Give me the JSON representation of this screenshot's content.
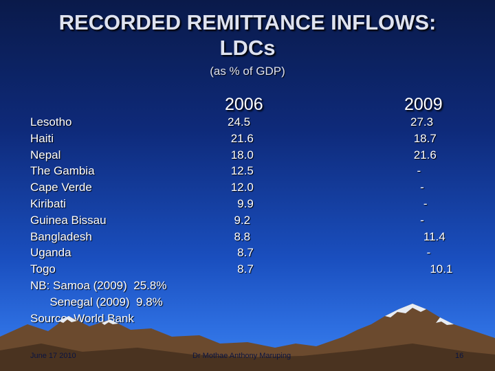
{
  "title": {
    "line1": "RECORDED REMITTANCE INFLOWS:",
    "line2": "LDCs"
  },
  "subtitle": "(as % of GDP)",
  "columns": {
    "year1": "2006",
    "year2": "2009"
  },
  "rows": [
    {
      "country": "Lesotho",
      "v2006": "24.5",
      "v2009": "27.3"
    },
    {
      "country": "Haiti",
      "v2006": " 21.6",
      "v2009": " 18.7"
    },
    {
      "country": "Nepal",
      "v2006": " 18.0",
      "v2009": " 21.6"
    },
    {
      "country": "The Gambia",
      "v2006": " 12.5",
      "v2009": "  -"
    },
    {
      "country": "Cape Verde",
      "v2006": " 12.0",
      "v2009": "   -"
    },
    {
      "country": "Kiribati",
      "v2006": "   9.9",
      "v2009": "    -"
    },
    {
      "country": "Guinea Bissau",
      "v2006": "  9.2",
      "v2009": "   -"
    },
    {
      "country": "Bangladesh",
      "v2006": "  8.8",
      "v2009": "    11.4"
    },
    {
      "country": "Uganda",
      "v2006": "   8.7",
      "v2009": "     -"
    },
    {
      "country": "Togo",
      "v2006": "   8.7",
      "v2009": "      10.1"
    }
  ],
  "notes": {
    "nb_line1": "NB: Samoa (2009)  25.8%",
    "nb_line2": "      Senegal (2009)  9.8%",
    "source": "Source: World Bank"
  },
  "footer": {
    "date": "June 17 2010",
    "author": "Dr  Mothae Anthony Maruping",
    "page": "16"
  },
  "colors": {
    "background_top": "#0a1a4a",
    "background_bottom": "#3a80ee",
    "mountain": "#6b4a2e",
    "snow": "#e8ecf2",
    "text": "#ffffff"
  }
}
